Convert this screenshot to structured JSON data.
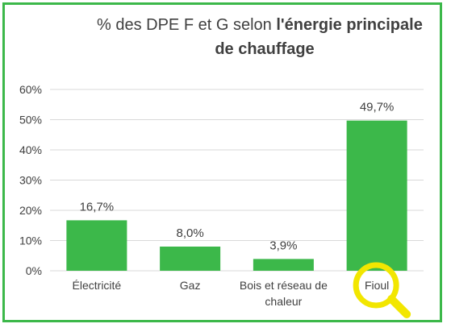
{
  "chart_data": {
    "type": "bar",
    "title_prefix": "% des DPE F et G selon ",
    "title_bold_line1": "l'énergie principale",
    "title_bold_line2": "de chauffage",
    "categories": [
      "Électricité",
      "Gaz",
      "Bois et réseau de chaleur",
      "Fioul"
    ],
    "category_lines": [
      [
        "Électricité"
      ],
      [
        "Gaz"
      ],
      [
        "Bois et réseau de",
        "chaleur"
      ],
      [
        "Fioul"
      ]
    ],
    "values": [
      16.7,
      8.0,
      3.9,
      49.7
    ],
    "data_labels": [
      "16,7%",
      "8,0%",
      "3,9%",
      "49,7%"
    ],
    "ylim": [
      0,
      60
    ],
    "yticks": [
      "0%",
      "10%",
      "20%",
      "30%",
      "40%",
      "50%",
      "60%"
    ],
    "grid": true,
    "bar_color": "#3cb84a",
    "highlight": {
      "category": "Fioul",
      "icon": "magnifying-glass-icon",
      "color": "#f2e600"
    }
  },
  "frame_color": "#3cb84a"
}
